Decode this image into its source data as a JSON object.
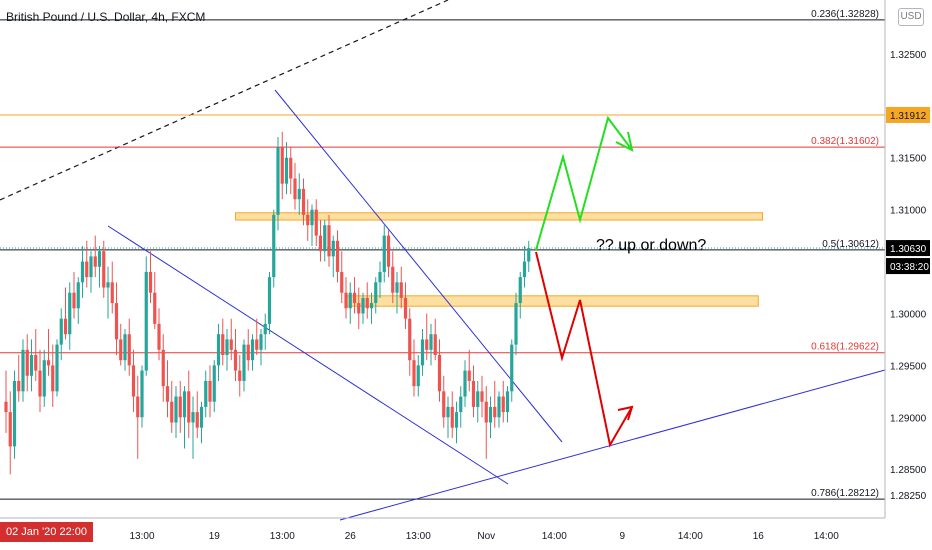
{
  "header": {
    "title": "British Pound / U.S. Dollar, 4h, FXCM",
    "currency_button": "USD"
  },
  "price_axis": {
    "current_price": "1.30630",
    "countdown": "03:38:20",
    "orange_level_label": "1.31912"
  },
  "time_axis": {
    "cursor_date": "02 Jan '20  22:00"
  },
  "annotation": {
    "question": "?? up or down?"
  },
  "colors": {
    "up": "#26a69a",
    "down": "#ef5350",
    "fib_red": "#e53935",
    "fib_black": "#131722",
    "orange": "#f5a623",
    "zone_fill": "#fcd581",
    "trend_blue": "#2a2ed8",
    "arrow_green": "#22e01e",
    "arrow_red": "#e00000",
    "axis_text": "#131722"
  },
  "chart_data": {
    "type": "candlestick",
    "symbol": "GBPUSD",
    "timeframe": "4h",
    "y_range": [
      1.2803,
      1.33
    ],
    "y_ticks": [
      "1.32500",
      "1.31500",
      "1.31000",
      "1.30000",
      "1.29500",
      "1.29000",
      "1.28500",
      "1.28250"
    ],
    "y_tick_values": [
      1.325,
      1.315,
      1.31,
      1.3,
      1.295,
      1.29,
      1.285,
      1.2825
    ],
    "x_ticks": [
      "13:00",
      "19",
      "13:00",
      "26",
      "13:00",
      "Nov",
      "14:00",
      "9",
      "14:00",
      "16",
      "14:00"
    ],
    "x_tick_bar_index": [
      32,
      49,
      65,
      81,
      97,
      113,
      129,
      145,
      161,
      177,
      193
    ],
    "fib_levels": [
      {
        "label": "0.236(1.32828)",
        "price": 1.32828,
        "color": "black"
      },
      {
        "label": "0.382(1.31602)",
        "price": 1.31602,
        "color": "red"
      },
      {
        "label": "0.5(1.30612)",
        "price": 1.30612,
        "color": "black"
      },
      {
        "label": "0.618(1.29622)",
        "price": 1.29622,
        "color": "red"
      },
      {
        "label": "0.786(1.28212)",
        "price": 1.28212,
        "color": "black"
      }
    ],
    "horizontal_level": 1.31912,
    "zones": [
      {
        "top": 1.3097,
        "bottom": 1.309,
        "start_bar": 54,
        "end_bar": 178
      },
      {
        "top": 1.3017,
        "bottom": 1.3007,
        "start_bar": 80,
        "end_bar": 177
      }
    ],
    "last_price": 1.3063,
    "candles": [
      [
        1.2915,
        1.2945,
        1.2885,
        1.2905
      ],
      [
        1.2905,
        1.2925,
        1.2845,
        1.2872
      ],
      [
        1.2872,
        1.2945,
        1.286,
        1.2935
      ],
      [
        1.2935,
        1.296,
        1.2915,
        1.2925
      ],
      [
        1.2925,
        1.2975,
        1.2915,
        1.2965
      ],
      [
        1.2965,
        1.298,
        1.2925,
        1.294
      ],
      [
        1.294,
        1.2975,
        1.2925,
        1.296
      ],
      [
        1.296,
        1.2985,
        1.2935,
        1.2945
      ],
      [
        1.2945,
        1.2965,
        1.2905,
        1.292
      ],
      [
        1.292,
        1.2965,
        1.291,
        1.2955
      ],
      [
        1.2955,
        1.2985,
        1.294,
        1.295
      ],
      [
        1.295,
        1.297,
        1.291,
        1.2925
      ],
      [
        1.2925,
        1.2975,
        1.292,
        1.297
      ],
      [
        1.297,
        1.3005,
        1.2955,
        1.2995
      ],
      [
        1.2995,
        1.3025,
        1.2975,
        1.298
      ],
      [
        1.298,
        1.303,
        1.2965,
        1.302
      ],
      [
        1.302,
        1.304,
        1.2995,
        1.3005
      ],
      [
        1.3005,
        1.3035,
        1.299,
        1.303
      ],
      [
        1.303,
        1.3065,
        1.3015,
        1.305
      ],
      [
        1.305,
        1.307,
        1.3025,
        1.3035
      ],
      [
        1.3035,
        1.306,
        1.302,
        1.3055
      ],
      [
        1.3055,
        1.3075,
        1.3035,
        1.3045
      ],
      [
        1.3045,
        1.3065,
        1.3025,
        1.306
      ],
      [
        1.306,
        1.307,
        1.3015,
        1.3025
      ],
      [
        1.3025,
        1.3045,
        1.2995,
        1.303
      ],
      [
        1.303,
        1.305,
        1.3,
        1.301
      ],
      [
        1.301,
        1.303,
        1.296,
        1.2975
      ],
      [
        1.2975,
        1.299,
        1.295,
        1.2955
      ],
      [
        1.2955,
        1.2985,
        1.2945,
        1.298
      ],
      [
        1.298,
        1.2995,
        1.294,
        1.295
      ],
      [
        1.295,
        1.2965,
        1.2905,
        1.292
      ],
      [
        1.292,
        1.294,
        1.286,
        1.29
      ],
      [
        1.29,
        1.295,
        1.289,
        1.2945
      ],
      [
        1.2945,
        1.3055,
        1.294,
        1.304
      ],
      [
        1.304,
        1.306,
        1.301,
        1.302
      ],
      [
        1.302,
        1.304,
        1.2985,
        1.299
      ],
      [
        1.299,
        1.3005,
        1.2955,
        1.2965
      ],
      [
        1.2965,
        1.298,
        1.2915,
        1.293
      ],
      [
        1.293,
        1.2955,
        1.29,
        1.2915
      ],
      [
        1.2915,
        1.2935,
        1.2885,
        1.2895
      ],
      [
        1.2895,
        1.293,
        1.288,
        1.292
      ],
      [
        1.292,
        1.2935,
        1.2885,
        1.29
      ],
      [
        1.29,
        1.293,
        1.287,
        1.2925
      ],
      [
        1.2925,
        1.2945,
        1.288,
        1.2895
      ],
      [
        1.2895,
        1.292,
        1.286,
        1.2905
      ],
      [
        1.2905,
        1.2925,
        1.288,
        1.289
      ],
      [
        1.289,
        1.2915,
        1.2875,
        1.291
      ],
      [
        1.291,
        1.2945,
        1.29,
        1.2935
      ],
      [
        1.2935,
        1.295,
        1.29,
        1.2915
      ],
      [
        1.2915,
        1.2955,
        1.2905,
        1.295
      ],
      [
        1.295,
        1.299,
        1.2935,
        1.298
      ],
      [
        1.298,
        1.2995,
        1.295,
        1.296
      ],
      [
        1.296,
        1.2985,
        1.2945,
        1.2975
      ],
      [
        1.2975,
        1.2995,
        1.2955,
        1.2965
      ],
      [
        1.2965,
        1.2985,
        1.2935,
        1.2945
      ],
      [
        1.2945,
        1.296,
        1.292,
        1.2935
      ],
      [
        1.2935,
        1.2975,
        1.2925,
        1.297
      ],
      [
        1.297,
        1.2985,
        1.2945,
        1.2955
      ],
      [
        1.2955,
        1.298,
        1.2945,
        1.2975
      ],
      [
        1.2975,
        1.2995,
        1.296,
        1.2965
      ],
      [
        1.2965,
        1.2985,
        1.295,
        1.298
      ],
      [
        1.298,
        1.3,
        1.2965,
        1.299
      ],
      [
        1.299,
        1.304,
        1.298,
        1.3035
      ],
      [
        1.3035,
        1.31,
        1.3025,
        1.3095
      ],
      [
        1.3095,
        1.317,
        1.308,
        1.316
      ],
      [
        1.316,
        1.3175,
        1.311,
        1.3125
      ],
      [
        1.3125,
        1.3165,
        1.3115,
        1.315
      ],
      [
        1.315,
        1.316,
        1.3115,
        1.313
      ],
      [
        1.313,
        1.3145,
        1.31,
        1.311
      ],
      [
        1.311,
        1.3135,
        1.3095,
        1.312
      ],
      [
        1.312,
        1.313,
        1.3085,
        1.3095
      ],
      [
        1.3095,
        1.311,
        1.307,
        1.3085
      ],
      [
        1.3085,
        1.3105,
        1.3065,
        1.31
      ],
      [
        1.31,
        1.311,
        1.3065,
        1.3075
      ],
      [
        1.3075,
        1.309,
        1.305,
        1.306
      ],
      [
        1.306,
        1.309,
        1.305,
        1.3085
      ],
      [
        1.3085,
        1.3095,
        1.3045,
        1.3055
      ],
      [
        1.3055,
        1.3075,
        1.3035,
        1.307
      ],
      [
        1.307,
        1.308,
        1.303,
        1.304
      ],
      [
        1.304,
        1.306,
        1.301,
        1.302
      ],
      [
        1.302,
        1.3035,
        1.2995,
        1.3005
      ],
      [
        1.3005,
        1.303,
        1.299,
        1.302
      ],
      [
        1.302,
        1.3035,
        1.3,
        1.301
      ],
      [
        1.301,
        1.3025,
        1.2985,
        1.3
      ],
      [
        1.3,
        1.302,
        1.299,
        1.3015
      ],
      [
        1.3015,
        1.303,
        1.2995,
        1.3005
      ],
      [
        1.3005,
        1.302,
        1.299,
        1.301
      ],
      [
        1.301,
        1.3035,
        1.3,
        1.303
      ],
      [
        1.303,
        1.305,
        1.3015,
        1.304
      ],
      [
        1.304,
        1.3085,
        1.303,
        1.3075
      ],
      [
        1.3075,
        1.308,
        1.3035,
        1.3045
      ],
      [
        1.3045,
        1.306,
        1.301,
        1.302
      ],
      [
        1.302,
        1.304,
        1.3,
        1.303
      ],
      [
        1.303,
        1.3045,
        1.3005,
        1.3015
      ],
      [
        1.3015,
        1.303,
        1.2985,
        1.2995
      ],
      [
        1.2995,
        1.3005,
        1.294,
        1.2955
      ],
      [
        1.2955,
        1.2975,
        1.292,
        1.293
      ],
      [
        1.293,
        1.296,
        1.292,
        1.295
      ],
      [
        1.295,
        1.2985,
        1.294,
        1.2975
      ],
      [
        1.2975,
        1.3,
        1.2955,
        1.2965
      ],
      [
        1.2965,
        1.299,
        1.295,
        1.298
      ],
      [
        1.298,
        1.2995,
        1.2955,
        1.296
      ],
      [
        1.296,
        1.2975,
        1.2915,
        1.2925
      ],
      [
        1.2925,
        1.294,
        1.289,
        1.29
      ],
      [
        1.29,
        1.292,
        1.288,
        1.291
      ],
      [
        1.291,
        1.2925,
        1.288,
        1.289
      ],
      [
        1.289,
        1.2915,
        1.2875,
        1.2905
      ],
      [
        1.2905,
        1.293,
        1.289,
        1.292
      ],
      [
        1.292,
        1.2955,
        1.291,
        1.2945
      ],
      [
        1.2945,
        1.2965,
        1.2925,
        1.2935
      ],
      [
        1.2935,
        1.295,
        1.29,
        1.291
      ],
      [
        1.291,
        1.2935,
        1.2895,
        1.2925
      ],
      [
        1.2925,
        1.294,
        1.29,
        1.2915
      ],
      [
        1.2915,
        1.293,
        1.286,
        1.2895
      ],
      [
        1.2895,
        1.292,
        1.288,
        1.291
      ],
      [
        1.291,
        1.2935,
        1.289,
        1.29
      ],
      [
        1.29,
        1.2925,
        1.289,
        1.292
      ],
      [
        1.292,
        1.2935,
        1.2895,
        1.2905
      ],
      [
        1.2905,
        1.293,
        1.2895,
        1.2925
      ],
      [
        1.2925,
        1.2975,
        1.2915,
        1.297
      ],
      [
        1.297,
        1.302,
        1.296,
        1.301
      ],
      [
        1.301,
        1.304,
        1.2995,
        1.3035
      ],
      [
        1.3035,
        1.3065,
        1.3025,
        1.305
      ],
      [
        1.305,
        1.307,
        1.304,
        1.3063
      ]
    ]
  }
}
